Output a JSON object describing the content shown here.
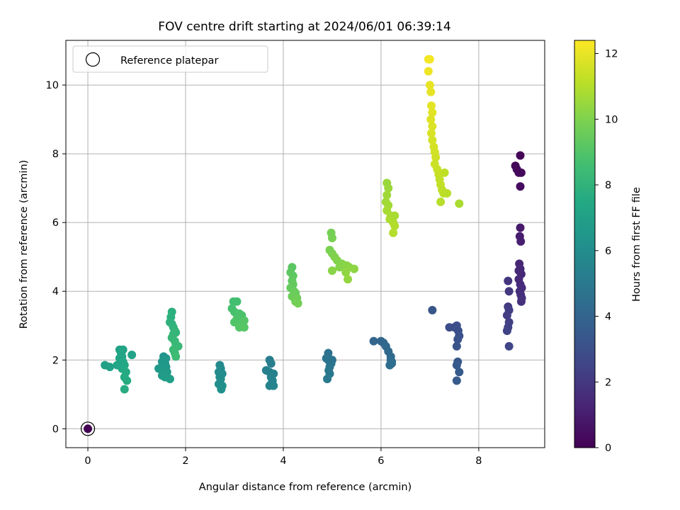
{
  "chart_data": {
    "type": "scatter",
    "title": "FOV centre drift starting at 2024/06/01 06:39:14",
    "xlabel": "Angular distance from reference (arcmin)",
    "ylabel": "Rotation from reference (arcmin)",
    "xlim": [
      -0.45,
      9.35
    ],
    "ylim": [
      -0.55,
      11.3
    ],
    "xticks": [
      0,
      2,
      4,
      6,
      8
    ],
    "yticks": [
      0,
      2,
      4,
      6,
      8,
      10
    ],
    "grid": true,
    "colormap": "viridis",
    "colorbar": {
      "label": "Hours from first FF file",
      "range": [
        0,
        12.4
      ],
      "ticks": [
        0,
        2,
        4,
        6,
        8,
        10,
        12
      ]
    },
    "legend": {
      "position": "upper-left",
      "entries": [
        "Reference platepar"
      ]
    },
    "reference_point": {
      "x": 0,
      "y": 0
    },
    "series": [
      {
        "points": [
          {
            "x": 0.0,
            "y": 0.0,
            "c": 0.0
          },
          {
            "x": 8.75,
            "y": 7.65,
            "c": 0.2
          },
          {
            "x": 8.78,
            "y": 7.55,
            "c": 0.25
          },
          {
            "x": 8.82,
            "y": 7.45,
            "c": 0.3
          },
          {
            "x": 8.85,
            "y": 7.95,
            "c": 0.1
          },
          {
            "x": 8.87,
            "y": 7.45,
            "c": 0.3
          },
          {
            "x": 8.85,
            "y": 7.05,
            "c": 0.4
          }
        ]
      },
      {
        "points": [
          {
            "x": 8.85,
            "y": 5.85,
            "c": 0.9
          },
          {
            "x": 8.84,
            "y": 5.6,
            "c": 1.0
          },
          {
            "x": 8.86,
            "y": 5.45,
            "c": 1.05
          },
          {
            "x": 8.83,
            "y": 4.8,
            "c": 1.3
          },
          {
            "x": 8.85,
            "y": 4.65,
            "c": 1.35
          },
          {
            "x": 8.87,
            "y": 4.5,
            "c": 1.4
          },
          {
            "x": 8.82,
            "y": 4.35,
            "c": 1.45
          },
          {
            "x": 8.85,
            "y": 4.2,
            "c": 1.5
          },
          {
            "x": 8.88,
            "y": 4.1,
            "c": 1.55
          },
          {
            "x": 8.84,
            "y": 4.0,
            "c": 1.6
          },
          {
            "x": 8.86,
            "y": 3.9,
            "c": 1.65
          },
          {
            "x": 8.88,
            "y": 3.8,
            "c": 1.7
          },
          {
            "x": 8.87,
            "y": 3.7,
            "c": 1.75
          },
          {
            "x": 8.82,
            "y": 4.6,
            "c": 1.4
          }
        ]
      },
      {
        "points": [
          {
            "x": 8.6,
            "y": 4.3,
            "c": 1.9
          },
          {
            "x": 8.62,
            "y": 4.0,
            "c": 2.0
          },
          {
            "x": 8.6,
            "y": 3.55,
            "c": 2.1
          },
          {
            "x": 8.62,
            "y": 3.45,
            "c": 2.2
          },
          {
            "x": 8.58,
            "y": 3.3,
            "c": 2.3
          },
          {
            "x": 8.62,
            "y": 3.1,
            "c": 2.35
          },
          {
            "x": 8.6,
            "y": 2.95,
            "c": 2.4
          },
          {
            "x": 8.58,
            "y": 2.85,
            "c": 2.45
          },
          {
            "x": 8.62,
            "y": 2.4,
            "c": 2.55
          }
        ]
      },
      {
        "points": [
          {
            "x": 7.05,
            "y": 3.45,
            "c": 3.3
          },
          {
            "x": 7.4,
            "y": 2.95,
            "c": 2.9
          },
          {
            "x": 7.5,
            "y": 2.95,
            "c": 2.95
          },
          {
            "x": 7.55,
            "y": 3.0,
            "c": 3.0
          },
          {
            "x": 7.58,
            "y": 2.85,
            "c": 3.05
          },
          {
            "x": 7.6,
            "y": 2.7,
            "c": 3.1
          },
          {
            "x": 7.57,
            "y": 2.6,
            "c": 3.15
          },
          {
            "x": 7.55,
            "y": 2.4,
            "c": 3.2
          },
          {
            "x": 7.57,
            "y": 1.95,
            "c": 3.4
          },
          {
            "x": 7.55,
            "y": 1.85,
            "c": 3.45
          },
          {
            "x": 7.6,
            "y": 1.65,
            "c": 3.5
          },
          {
            "x": 7.55,
            "y": 1.4,
            "c": 3.55
          }
        ]
      },
      {
        "points": [
          {
            "x": 5.85,
            "y": 2.55,
            "c": 4.0
          },
          {
            "x": 6.0,
            "y": 2.55,
            "c": 4.05
          },
          {
            "x": 6.05,
            "y": 2.5,
            "c": 4.1
          },
          {
            "x": 6.1,
            "y": 2.4,
            "c": 4.15
          },
          {
            "x": 6.15,
            "y": 2.25,
            "c": 4.2
          },
          {
            "x": 6.2,
            "y": 2.1,
            "c": 4.25
          },
          {
            "x": 6.2,
            "y": 2.0,
            "c": 4.3
          },
          {
            "x": 6.22,
            "y": 1.9,
            "c": 4.35
          },
          {
            "x": 6.18,
            "y": 1.85,
            "c": 4.4
          },
          {
            "x": 6.22,
            "y": 1.95,
            "c": 4.45
          }
        ]
      },
      {
        "points": [
          {
            "x": 4.92,
            "y": 2.2,
            "c": 4.6
          },
          {
            "x": 4.88,
            "y": 2.05,
            "c": 4.65
          },
          {
            "x": 4.92,
            "y": 2.0,
            "c": 4.7
          },
          {
            "x": 4.95,
            "y": 1.95,
            "c": 4.75
          },
          {
            "x": 4.98,
            "y": 1.9,
            "c": 4.8
          },
          {
            "x": 4.95,
            "y": 1.8,
            "c": 4.85
          },
          {
            "x": 4.93,
            "y": 1.7,
            "c": 4.9
          },
          {
            "x": 4.95,
            "y": 1.6,
            "c": 4.95
          },
          {
            "x": 4.9,
            "y": 1.45,
            "c": 5.0
          },
          {
            "x": 5.0,
            "y": 2.0,
            "c": 4.7
          }
        ]
      },
      {
        "points": [
          {
            "x": 3.72,
            "y": 2.0,
            "c": 5.2
          },
          {
            "x": 3.75,
            "y": 1.9,
            "c": 5.25
          },
          {
            "x": 3.65,
            "y": 1.7,
            "c": 5.3
          },
          {
            "x": 3.72,
            "y": 1.65,
            "c": 5.35
          },
          {
            "x": 3.8,
            "y": 1.6,
            "c": 5.4
          },
          {
            "x": 3.75,
            "y": 1.5,
            "c": 5.45
          },
          {
            "x": 3.78,
            "y": 1.4,
            "c": 5.5
          },
          {
            "x": 3.72,
            "y": 1.25,
            "c": 5.55
          },
          {
            "x": 3.8,
            "y": 1.25,
            "c": 5.6
          },
          {
            "x": 3.75,
            "y": 1.3,
            "c": 5.5
          }
        ]
      },
      {
        "points": [
          {
            "x": 2.7,
            "y": 1.85,
            "c": 5.8
          },
          {
            "x": 2.72,
            "y": 1.75,
            "c": 5.85
          },
          {
            "x": 2.68,
            "y": 1.65,
            "c": 5.9
          },
          {
            "x": 2.75,
            "y": 1.6,
            "c": 5.95
          },
          {
            "x": 2.7,
            "y": 1.5,
            "c": 6.0
          },
          {
            "x": 2.72,
            "y": 1.45,
            "c": 6.05
          },
          {
            "x": 2.68,
            "y": 1.3,
            "c": 6.1
          },
          {
            "x": 2.75,
            "y": 1.25,
            "c": 6.15
          },
          {
            "x": 2.73,
            "y": 1.15,
            "c": 6.2
          }
        ]
      },
      {
        "points": [
          {
            "x": 1.55,
            "y": 2.1,
            "c": 6.4
          },
          {
            "x": 1.6,
            "y": 2.05,
            "c": 6.45
          },
          {
            "x": 1.52,
            "y": 1.95,
            "c": 6.5
          },
          {
            "x": 1.58,
            "y": 1.9,
            "c": 6.55
          },
          {
            "x": 1.6,
            "y": 1.8,
            "c": 6.6
          },
          {
            "x": 1.45,
            "y": 1.75,
            "c": 6.65
          },
          {
            "x": 1.55,
            "y": 1.7,
            "c": 6.7
          },
          {
            "x": 1.62,
            "y": 1.65,
            "c": 6.75
          },
          {
            "x": 1.55,
            "y": 1.6,
            "c": 6.8
          },
          {
            "x": 1.58,
            "y": 1.5,
            "c": 6.85
          },
          {
            "x": 1.68,
            "y": 1.45,
            "c": 6.9
          },
          {
            "x": 1.52,
            "y": 1.55,
            "c": 6.8
          }
        ]
      },
      {
        "points": [
          {
            "x": 0.35,
            "y": 1.85,
            "c": 7.0
          },
          {
            "x": 0.45,
            "y": 1.8,
            "c": 7.05
          },
          {
            "x": 0.65,
            "y": 2.3,
            "c": 7.1
          },
          {
            "x": 0.72,
            "y": 2.3,
            "c": 7.15
          },
          {
            "x": 0.68,
            "y": 2.2,
            "c": 7.2
          },
          {
            "x": 0.7,
            "y": 2.1,
            "c": 7.25
          },
          {
            "x": 0.65,
            "y": 2.05,
            "c": 7.3
          },
          {
            "x": 0.72,
            "y": 1.95,
            "c": 7.35
          },
          {
            "x": 0.75,
            "y": 1.85,
            "c": 7.4
          },
          {
            "x": 0.7,
            "y": 1.75,
            "c": 7.45
          },
          {
            "x": 0.78,
            "y": 1.65,
            "c": 7.5
          },
          {
            "x": 0.75,
            "y": 1.5,
            "c": 7.55
          },
          {
            "x": 0.8,
            "y": 1.4,
            "c": 7.6
          },
          {
            "x": 0.75,
            "y": 1.15,
            "c": 7.65
          },
          {
            "x": 0.9,
            "y": 2.15,
            "c": 7.1
          },
          {
            "x": 0.6,
            "y": 1.85,
            "c": 7.2
          }
        ]
      },
      {
        "points": [
          {
            "x": 1.72,
            "y": 3.4,
            "c": 7.8
          },
          {
            "x": 1.7,
            "y": 3.25,
            "c": 7.85
          },
          {
            "x": 1.68,
            "y": 3.1,
            "c": 7.9
          },
          {
            "x": 1.72,
            "y": 3.05,
            "c": 7.95
          },
          {
            "x": 1.75,
            "y": 2.95,
            "c": 8.0
          },
          {
            "x": 1.78,
            "y": 2.85,
            "c": 8.05
          },
          {
            "x": 1.8,
            "y": 2.8,
            "c": 8.1
          },
          {
            "x": 1.75,
            "y": 2.75,
            "c": 8.15
          },
          {
            "x": 1.72,
            "y": 2.65,
            "c": 8.2
          },
          {
            "x": 1.78,
            "y": 2.55,
            "c": 8.25
          },
          {
            "x": 1.8,
            "y": 2.45,
            "c": 8.3
          },
          {
            "x": 1.75,
            "y": 2.3,
            "c": 8.35
          },
          {
            "x": 1.78,
            "y": 2.2,
            "c": 8.4
          },
          {
            "x": 1.8,
            "y": 2.1,
            "c": 8.45
          },
          {
            "x": 1.85,
            "y": 2.4,
            "c": 8.3
          }
        ]
      },
      {
        "points": [
          {
            "x": 2.98,
            "y": 3.7,
            "c": 8.6
          },
          {
            "x": 3.05,
            "y": 3.7,
            "c": 8.65
          },
          {
            "x": 2.95,
            "y": 3.5,
            "c": 8.7
          },
          {
            "x": 3.0,
            "y": 3.4,
            "c": 8.75
          },
          {
            "x": 3.1,
            "y": 3.35,
            "c": 8.8
          },
          {
            "x": 3.15,
            "y": 3.3,
            "c": 8.85
          },
          {
            "x": 3.05,
            "y": 3.2,
            "c": 8.9
          },
          {
            "x": 3.0,
            "y": 3.1,
            "c": 8.95
          },
          {
            "x": 3.1,
            "y": 3.05,
            "c": 9.0
          },
          {
            "x": 3.2,
            "y": 3.15,
            "c": 9.05
          },
          {
            "x": 3.2,
            "y": 2.95,
            "c": 9.1
          },
          {
            "x": 3.1,
            "y": 2.95,
            "c": 9.1
          }
        ]
      },
      {
        "points": [
          {
            "x": 4.18,
            "y": 4.7,
            "c": 9.2
          },
          {
            "x": 4.15,
            "y": 4.55,
            "c": 9.25
          },
          {
            "x": 4.2,
            "y": 4.45,
            "c": 9.3
          },
          {
            "x": 4.18,
            "y": 4.3,
            "c": 9.35
          },
          {
            "x": 4.2,
            "y": 4.2,
            "c": 9.4
          },
          {
            "x": 4.15,
            "y": 4.1,
            "c": 9.45
          },
          {
            "x": 4.22,
            "y": 4.0,
            "c": 9.5
          },
          {
            "x": 4.25,
            "y": 3.95,
            "c": 9.55
          },
          {
            "x": 4.18,
            "y": 3.85,
            "c": 9.6
          },
          {
            "x": 4.28,
            "y": 3.8,
            "c": 9.65
          },
          {
            "x": 4.25,
            "y": 3.7,
            "c": 9.7
          },
          {
            "x": 4.3,
            "y": 3.65,
            "c": 9.75
          }
        ]
      },
      {
        "points": [
          {
            "x": 4.98,
            "y": 5.7,
            "c": 9.8
          },
          {
            "x": 5.0,
            "y": 5.55,
            "c": 9.85
          },
          {
            "x": 4.95,
            "y": 5.2,
            "c": 9.9
          },
          {
            "x": 5.0,
            "y": 5.1,
            "c": 9.95
          },
          {
            "x": 5.05,
            "y": 5.0,
            "c": 10.0
          },
          {
            "x": 5.1,
            "y": 4.9,
            "c": 10.05
          },
          {
            "x": 5.2,
            "y": 4.8,
            "c": 10.1
          },
          {
            "x": 5.15,
            "y": 4.7,
            "c": 10.15
          },
          {
            "x": 5.3,
            "y": 4.75,
            "c": 10.2
          },
          {
            "x": 5.35,
            "y": 4.7,
            "c": 10.25
          },
          {
            "x": 5.45,
            "y": 4.65,
            "c": 10.3
          },
          {
            "x": 5.28,
            "y": 4.55,
            "c": 10.35
          },
          {
            "x": 5.32,
            "y": 4.35,
            "c": 10.4
          },
          {
            "x": 5.0,
            "y": 4.6,
            "c": 10.2
          }
        ]
      },
      {
        "points": [
          {
            "x": 6.12,
            "y": 7.15,
            "c": 10.5
          },
          {
            "x": 6.15,
            "y": 7.0,
            "c": 10.55
          },
          {
            "x": 6.12,
            "y": 6.8,
            "c": 10.6
          },
          {
            "x": 6.1,
            "y": 6.6,
            "c": 10.65
          },
          {
            "x": 6.15,
            "y": 6.5,
            "c": 10.7
          },
          {
            "x": 6.12,
            "y": 6.35,
            "c": 10.75
          },
          {
            "x": 6.2,
            "y": 6.2,
            "c": 10.8
          },
          {
            "x": 6.18,
            "y": 6.1,
            "c": 10.85
          },
          {
            "x": 6.25,
            "y": 6.0,
            "c": 10.9
          },
          {
            "x": 6.28,
            "y": 5.9,
            "c": 10.95
          },
          {
            "x": 6.25,
            "y": 5.7,
            "c": 11.0
          },
          {
            "x": 6.28,
            "y": 6.2,
            "c": 10.8
          }
        ]
      },
      {
        "points": [
          {
            "x": 6.97,
            "y": 10.75,
            "c": 12.2
          },
          {
            "x": 7.0,
            "y": 10.75,
            "c": 12.2
          },
          {
            "x": 6.97,
            "y": 10.4,
            "c": 12.1
          },
          {
            "x": 7.0,
            "y": 10.0,
            "c": 12.0
          },
          {
            "x": 7.02,
            "y": 9.8,
            "c": 11.95
          },
          {
            "x": 7.03,
            "y": 9.4,
            "c": 11.9
          },
          {
            "x": 7.05,
            "y": 9.2,
            "c": 11.85
          },
          {
            "x": 7.02,
            "y": 9.0,
            "c": 11.8
          },
          {
            "x": 7.05,
            "y": 8.8,
            "c": 11.75
          },
          {
            "x": 7.03,
            "y": 8.6,
            "c": 11.7
          },
          {
            "x": 7.05,
            "y": 8.4,
            "c": 11.65
          },
          {
            "x": 7.08,
            "y": 8.2,
            "c": 11.6
          },
          {
            "x": 7.1,
            "y": 8.05,
            "c": 11.55
          },
          {
            "x": 7.12,
            "y": 7.9,
            "c": 11.5
          },
          {
            "x": 7.1,
            "y": 7.7,
            "c": 11.45
          },
          {
            "x": 7.15,
            "y": 7.55,
            "c": 11.4
          },
          {
            "x": 7.18,
            "y": 7.4,
            "c": 11.35
          },
          {
            "x": 7.2,
            "y": 7.25,
            "c": 11.3
          },
          {
            "x": 7.22,
            "y": 7.1,
            "c": 11.25
          },
          {
            "x": 7.25,
            "y": 6.95,
            "c": 11.2
          },
          {
            "x": 7.28,
            "y": 6.85,
            "c": 11.15
          },
          {
            "x": 7.35,
            "y": 6.85,
            "c": 11.1
          },
          {
            "x": 7.3,
            "y": 7.45,
            "c": 11.2
          },
          {
            "x": 7.22,
            "y": 6.6,
            "c": 11.05
          },
          {
            "x": 7.6,
            "y": 6.55,
            "c": 10.8
          }
        ]
      }
    ]
  }
}
